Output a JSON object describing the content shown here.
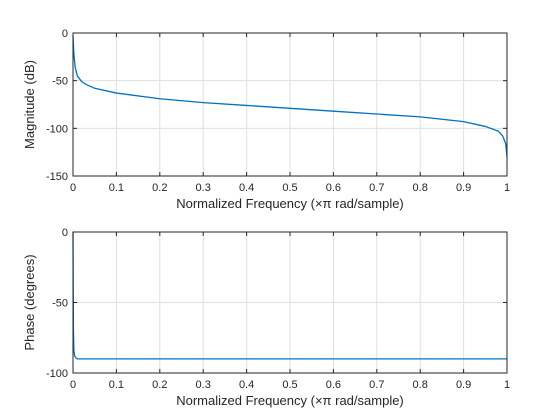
{
  "chart_data": [
    {
      "type": "line",
      "xlabel": "Normalized Frequency  (×π rad/sample)",
      "ylabel": "Magnitude (dB)",
      "xlim": [
        0,
        1
      ],
      "ylim": [
        -150,
        0
      ],
      "xticks": [
        "0",
        "0.1",
        "0.2",
        "0.3",
        "0.4",
        "0.5",
        "0.6",
        "0.7",
        "0.8",
        "0.9",
        "1"
      ],
      "yticks": [
        "-150",
        "-100",
        "-50",
        "0"
      ],
      "grid": true,
      "color": "#0072bd",
      "x": [
        0,
        0.002,
        0.005,
        0.01,
        0.02,
        0.03,
        0.05,
        0.1,
        0.2,
        0.3,
        0.4,
        0.5,
        0.6,
        0.7,
        0.8,
        0.9,
        0.95,
        0.98,
        0.99,
        0.997,
        1
      ],
      "y": [
        -3,
        -22,
        -36,
        -45,
        -51,
        -54,
        -58,
        -63,
        -69,
        -73,
        -76,
        -79,
        -82,
        -85,
        -88,
        -93,
        -98,
        -103,
        -108,
        -116,
        -130
      ]
    },
    {
      "type": "line",
      "xlabel": "Normalized Frequency  (×π rad/sample)",
      "ylabel": "Phase (degrees)",
      "xlim": [
        0,
        1
      ],
      "ylim": [
        -100,
        0
      ],
      "xticks": [
        "0",
        "0.1",
        "0.2",
        "0.3",
        "0.4",
        "0.5",
        "0.6",
        "0.7",
        "0.8",
        "0.9",
        "1"
      ],
      "yticks": [
        "-100",
        "-50",
        "0"
      ],
      "grid": true,
      "color": "#0072bd",
      "x": [
        0,
        0.0005,
        0.001,
        0.002,
        0.004,
        0.006,
        0.01,
        0.5,
        1
      ],
      "y": [
        0,
        -40,
        -70,
        -84,
        -88,
        -89,
        -90,
        -90,
        -90
      ]
    }
  ]
}
